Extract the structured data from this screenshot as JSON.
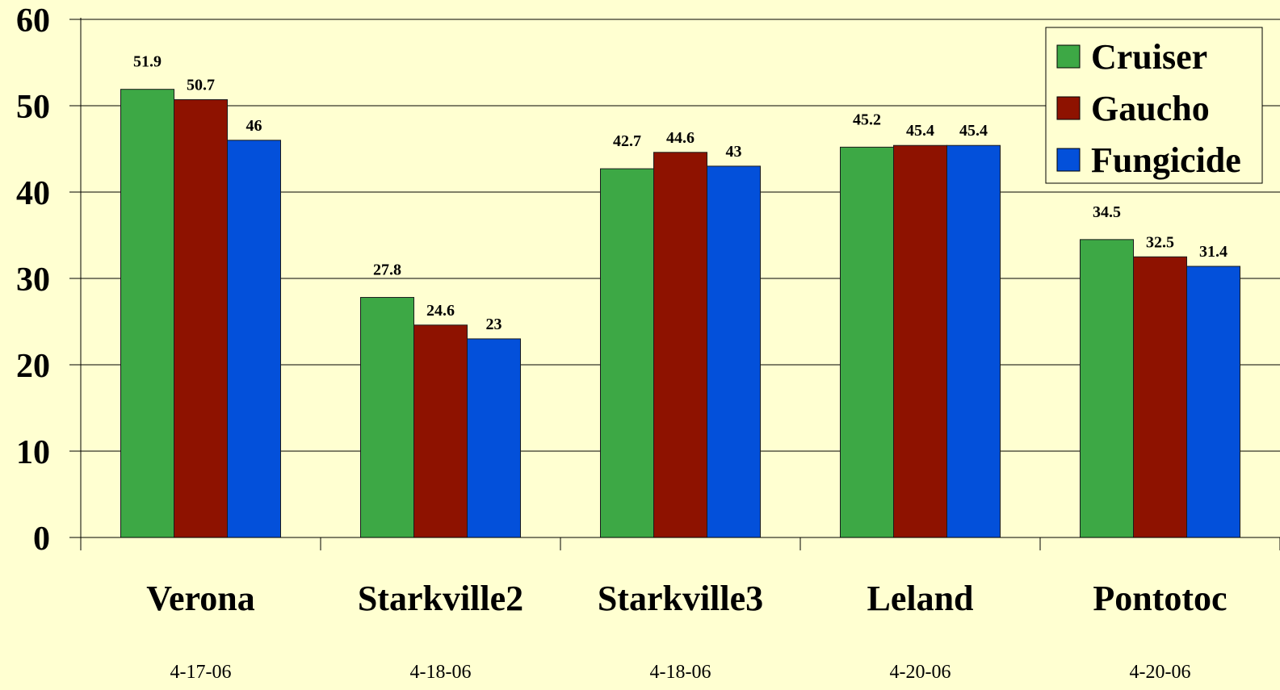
{
  "chart_data": {
    "type": "bar",
    "categories": [
      "Verona",
      "Starkville2",
      "Starkville3",
      "Leland",
      "Pontotoc"
    ],
    "dates": [
      "4-17-06",
      "4-18-06",
      "4-18-06",
      "4-20-06",
      "4-20-06"
    ],
    "series": [
      {
        "name": "Cruiser",
        "color": "#3DA845",
        "values": [
          51.9,
          27.8,
          42.7,
          45.2,
          34.5
        ]
      },
      {
        "name": "Gaucho",
        "color": "#8E1200",
        "values": [
          50.7,
          24.6,
          44.6,
          45.4,
          32.5
        ]
      },
      {
        "name": "Fungicide",
        "color": "#0350DA",
        "values": [
          46,
          23,
          43,
          45.4,
          31.4
        ]
      }
    ],
    "ylim": [
      0,
      60
    ],
    "yticks": [
      0,
      10,
      20,
      30,
      40,
      50,
      60
    ],
    "grid": true,
    "legend_position": "top-right",
    "title": "",
    "xlabel": "",
    "ylabel": ""
  }
}
